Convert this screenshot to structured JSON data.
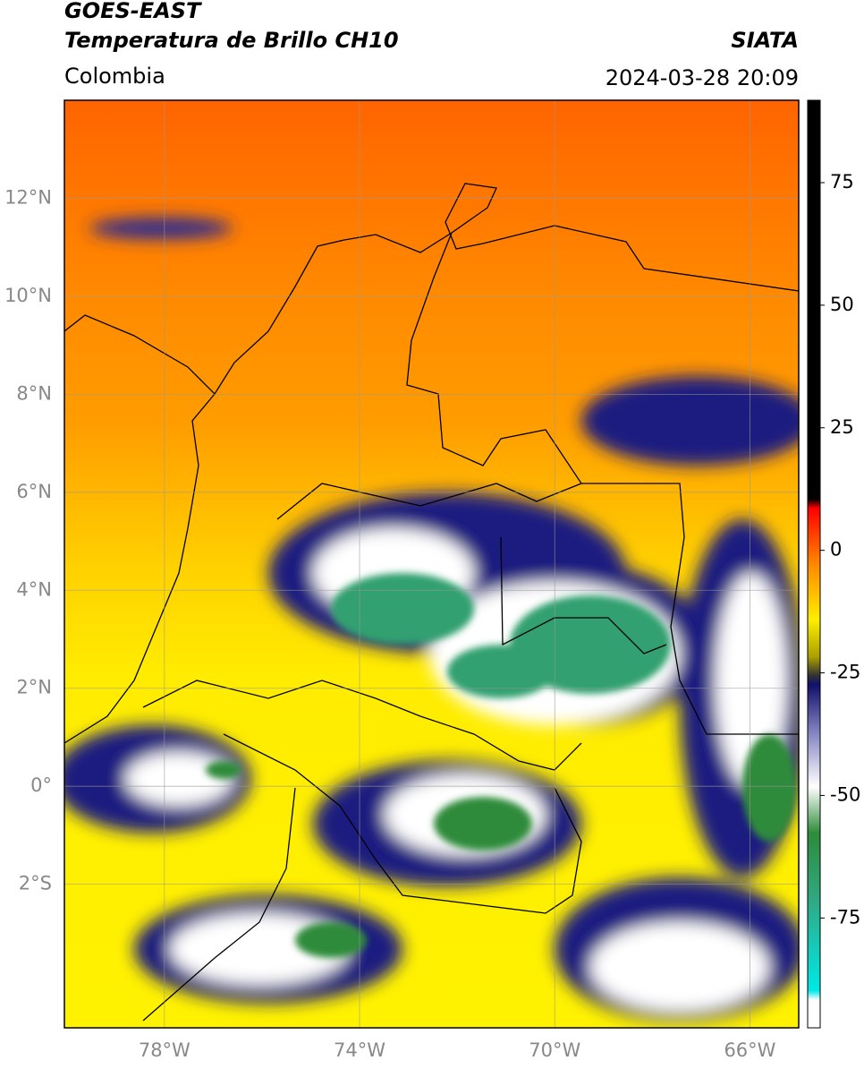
{
  "header": {
    "title": "GOES-EAST",
    "subtitle": "Temperatura de Brillo CH10",
    "region": "Colombia",
    "source": "SIATA",
    "datetime": "2024-03-28 20:09"
  },
  "map": {
    "xlim": [
      -80.05,
      -65
    ],
    "ylim": [
      -4.93,
      14
    ],
    "xticks": [
      {
        "value": -78,
        "label": "78°W"
      },
      {
        "value": -74,
        "label": "74°W"
      },
      {
        "value": -70,
        "label": "70°W"
      },
      {
        "value": -66,
        "label": "66°W"
      }
    ],
    "yticks": [
      {
        "value": 12,
        "label": "12°N"
      },
      {
        "value": 10,
        "label": "10°N"
      },
      {
        "value": 8,
        "label": "8°N"
      },
      {
        "value": 6,
        "label": "6°N"
      },
      {
        "value": 4,
        "label": "4°N"
      },
      {
        "value": 2,
        "label": "2°N"
      },
      {
        "value": 0,
        "label": "0°"
      },
      {
        "value": -2,
        "label": "2°S"
      }
    ]
  },
  "colorbar": {
    "lim": [
      -97.4,
      91.8
    ],
    "ticks": [
      75,
      50,
      25,
      0,
      -25,
      -50,
      -75
    ]
  }
}
